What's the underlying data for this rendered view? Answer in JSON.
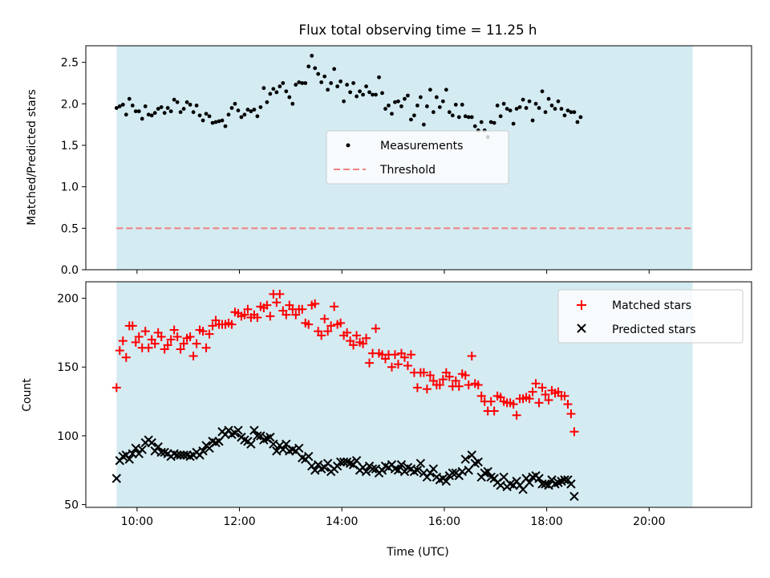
{
  "colors": {
    "shade": "#d4ebf2",
    "measurement": "#000000",
    "threshold": "#f08080",
    "matched": "#ff0000",
    "predicted": "#000000"
  },
  "chart_data": [
    {
      "type": "scatter",
      "title": "Flux total observing time = 11.25 h",
      "xlabel": "",
      "ylabel": "Matched/Predicted stars",
      "xlim_hours": [
        9.0,
        22.0
      ],
      "ylim": [
        0.0,
        2.7
      ],
      "yticks": [
        0.0,
        0.5,
        1.0,
        1.5,
        2.0,
        2.5
      ],
      "ytick_labels": [
        "0.0",
        "0.5",
        "1.0",
        "1.5",
        "2.0",
        "2.5"
      ],
      "shaded_span_hours": [
        9.6,
        20.85
      ],
      "threshold": 0.5,
      "legend": {
        "position": "center",
        "entries": [
          "Measurements",
          "Threshold"
        ]
      },
      "series": [
        {
          "name": "Measurements",
          "x_start": 9.6,
          "x_step": 0.0625,
          "values": [
            1.95,
            1.97,
            1.99,
            1.87,
            2.06,
            1.98,
            1.91,
            1.91,
            1.82,
            1.97,
            1.87,
            1.86,
            1.89,
            1.94,
            1.96,
            1.89,
            1.95,
            1.91,
            2.05,
            2.02,
            1.9,
            1.94,
            2.02,
            1.99,
            1.9,
            1.98,
            1.86,
            1.8,
            1.88,
            1.85,
            1.77,
            1.78,
            1.79,
            1.8,
            1.73,
            1.87,
            1.95,
            2.0,
            1.92,
            1.84,
            1.87,
            1.93,
            1.91,
            1.93,
            1.85,
            1.96,
            2.19,
            2.02,
            2.12,
            2.18,
            2.14,
            2.21,
            2.25,
            2.15,
            2.08,
            2.0,
            2.23,
            2.26,
            2.25,
            2.25,
            2.45,
            2.58,
            2.43,
            2.36,
            2.26,
            2.33,
            2.17,
            2.25,
            2.42,
            2.21,
            2.27,
            2.03,
            2.23,
            2.14,
            2.25,
            2.09,
            2.15,
            2.11,
            2.21,
            2.14,
            2.11,
            2.11,
            2.32,
            2.13,
            1.94,
            1.98,
            1.88,
            2.02,
            2.03,
            1.97,
            2.06,
            2.1,
            1.81,
            1.86,
            1.98,
            2.08,
            1.75,
            1.97,
            2.17,
            1.9,
            2.08,
            1.96,
            2.03,
            2.17,
            1.9,
            1.86,
            1.99,
            1.84,
            1.99,
            1.85,
            1.84,
            1.84,
            1.73,
            1.68,
            1.78,
            1.68,
            1.6,
            1.78,
            1.77,
            1.98,
            1.85,
            2.0,
            1.94,
            1.92,
            1.76,
            1.94,
            1.96,
            2.05,
            1.95,
            2.03,
            1.8,
            2.0,
            1.95,
            2.15,
            1.9,
            2.06,
            1.98,
            1.94,
            2.03,
            1.94,
            1.86,
            1.92,
            1.9,
            1.9,
            1.78,
            1.84
          ]
        },
        {
          "name": "Threshold",
          "value": 0.5
        }
      ]
    },
    {
      "type": "scatter",
      "title": "",
      "xlabel": "Time (UTC)",
      "ylabel": "Count",
      "xlim_hours": [
        9.0,
        22.0
      ],
      "ylim": [
        48,
        212
      ],
      "yticks": [
        50,
        100,
        150,
        200
      ],
      "ytick_labels": [
        "50",
        "100",
        "150",
        "200"
      ],
      "xticks_hours": [
        10,
        12,
        14,
        16,
        18,
        20
      ],
      "xtick_labels": [
        "10:00",
        "12:00",
        "14:00",
        "16:00",
        "18:00",
        "20:00"
      ],
      "shaded_span_hours": [
        9.6,
        20.85
      ],
      "legend": {
        "position": "top-right",
        "entries": [
          "Matched stars",
          "Predicted stars"
        ]
      },
      "series": [
        {
          "name": "Matched stars",
          "marker": "plus",
          "x_start": 9.6,
          "x_step": 0.0625,
          "values": [
            135,
            162,
            169,
            157,
            180,
            180,
            168,
            172,
            164,
            176,
            164,
            170,
            167,
            175,
            172,
            163,
            166,
            170,
            177,
            172,
            163,
            167,
            171,
            172,
            158,
            167,
            177,
            176,
            164,
            174,
            180,
            184,
            181,
            181,
            181,
            182,
            181,
            190,
            189,
            187,
            188,
            192,
            186,
            188,
            186,
            194,
            193,
            195,
            187,
            203,
            197,
            203,
            191,
            188,
            195,
            192,
            188,
            192,
            192,
            182,
            181,
            195,
            196,
            176,
            173,
            185,
            176,
            180,
            194,
            181,
            182,
            173,
            175,
            169,
            166,
            173,
            168,
            167,
            171,
            153,
            160,
            178,
            160,
            159,
            156,
            159,
            150,
            159,
            152,
            160,
            157,
            151,
            159,
            146,
            135,
            146,
            146,
            134,
            144,
            140,
            137,
            137,
            141,
            146,
            143,
            136,
            140,
            136,
            145,
            144,
            137,
            158,
            138,
            137,
            129,
            125,
            118,
            125,
            118,
            129,
            128,
            125,
            124,
            124,
            123,
            115,
            127,
            127,
            128,
            127,
            132,
            138,
            124,
            135,
            130,
            126,
            133,
            131,
            132,
            129,
            129,
            123,
            116,
            103
          ]
        },
        {
          "name": "Predicted stars",
          "marker": "x",
          "x_start": 9.6,
          "x_step": 0.0625,
          "values": [
            69,
            82,
            85,
            86,
            83,
            87,
            91,
            87,
            90,
            95,
            97,
            95,
            89,
            92,
            88,
            88,
            87,
            85,
            87,
            86,
            86,
            86,
            86,
            85,
            86,
            88,
            86,
            89,
            93,
            91,
            96,
            95,
            96,
            103,
            101,
            104,
            101,
            102,
            104,
            99,
            97,
            96,
            94,
            104,
            100,
            100,
            97,
            98,
            99,
            94,
            89,
            93,
            90,
            94,
            89,
            90,
            89,
            91,
            84,
            83,
            85,
            78,
            75,
            79,
            76,
            77,
            80,
            74,
            76,
            78,
            81,
            81,
            81,
            80,
            79,
            82,
            75,
            77,
            74,
            78,
            76,
            76,
            73,
            75,
            78,
            77,
            79,
            76,
            75,
            79,
            74,
            77,
            76,
            74,
            75,
            80,
            73,
            70,
            73,
            76,
            70,
            68,
            69,
            67,
            71,
            73,
            73,
            71,
            74,
            83,
            75,
            86,
            80,
            81,
            70,
            73,
            74,
            70,
            69,
            66,
            64,
            70,
            63,
            65,
            64,
            67,
            64,
            61,
            69,
            66,
            70,
            71,
            69,
            65,
            65,
            64,
            68,
            65,
            66,
            67,
            68,
            68,
            65,
            56
          ]
        }
      ]
    }
  ]
}
